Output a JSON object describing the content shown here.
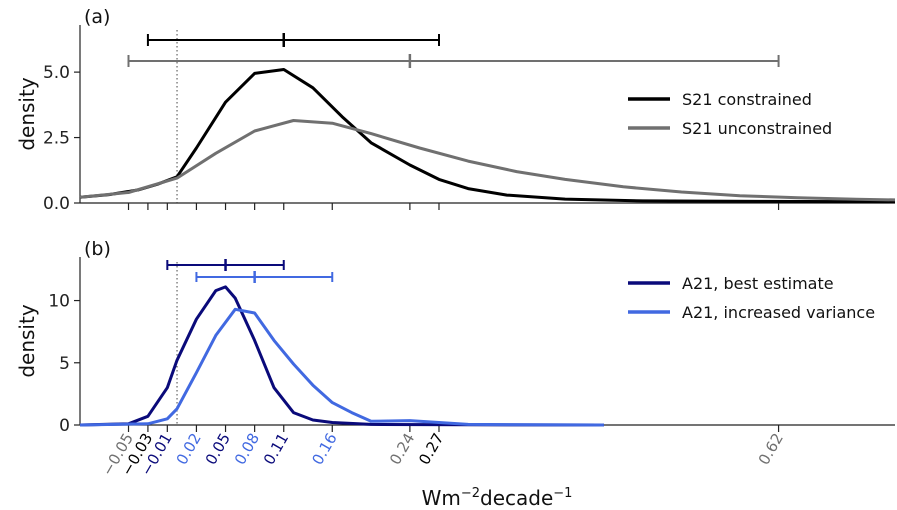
{
  "chart_data": {
    "type": "line",
    "shared_x": {
      "xlabel_base": "Wm",
      "xlabel_exp1": "−2",
      "xlabel_mid": "decade",
      "xlabel_exp2": "−1",
      "xlim": [
        -0.1,
        0.74
      ],
      "tick_labels": [
        {
          "value": -0.05,
          "text": "−0.05",
          "color": "#707070"
        },
        {
          "value": -0.03,
          "text": "−0.03",
          "color": "#000000"
        },
        {
          "value": -0.01,
          "text": "−0.01",
          "color": "#0a0a7a"
        },
        {
          "value": 0.02,
          "text": "0.02",
          "color": "#4169e1"
        },
        {
          "value": 0.05,
          "text": "0.05",
          "color": "#0a0a7a"
        },
        {
          "value": 0.08,
          "text": "0.08",
          "color": "#4169e1"
        },
        {
          "value": 0.11,
          "text": "0.11",
          "color": "#0a0a7a"
        },
        {
          "value": 0.16,
          "text": "0.16",
          "color": "#4169e1"
        },
        {
          "value": 0.24,
          "text": "0.24",
          "color": "#707070"
        },
        {
          "value": 0.27,
          "text": "0.27",
          "color": "#000000"
        },
        {
          "value": 0.62,
          "text": "0.62",
          "color": "#707070"
        }
      ],
      "reference_line_x": 0.0
    },
    "panels": [
      {
        "panel_label": "(a)",
        "ylabel": "density",
        "ylim": [
          0,
          6.8
        ],
        "yticks": [
          0.0,
          2.5,
          5.0
        ],
        "ytick_labels": [
          "0.0",
          "2.5",
          "5.0"
        ],
        "series": [
          {
            "name": "S21 constrained",
            "color": "#000000",
            "x": [
              -0.1,
              -0.07,
              -0.04,
              -0.02,
              0.0,
              0.02,
              0.05,
              0.08,
              0.11,
              0.14,
              0.17,
              0.2,
              0.24,
              0.27,
              0.3,
              0.34,
              0.4,
              0.48,
              0.6,
              0.74
            ],
            "y": [
              0.22,
              0.32,
              0.5,
              0.72,
              1.0,
              2.1,
              3.85,
              4.95,
              5.1,
              4.4,
              3.3,
              2.3,
              1.45,
              0.9,
              0.55,
              0.3,
              0.15,
              0.08,
              0.06,
              0.05
            ]
          },
          {
            "name": "S21 unconstrained",
            "color": "#707070",
            "x": [
              -0.1,
              -0.05,
              0.0,
              0.04,
              0.08,
              0.12,
              0.16,
              0.2,
              0.25,
              0.3,
              0.35,
              0.4,
              0.46,
              0.52,
              0.58,
              0.64,
              0.7,
              0.74
            ],
            "y": [
              0.22,
              0.4,
              0.95,
              1.9,
              2.75,
              3.15,
              3.05,
              2.65,
              2.1,
              1.6,
              1.2,
              0.9,
              0.62,
              0.42,
              0.28,
              0.2,
              0.14,
              0.12
            ]
          }
        ],
        "intervals": [
          {
            "series": "S21 constrained",
            "low": -0.03,
            "median": 0.11,
            "high": 0.27,
            "color": "#000000"
          },
          {
            "series": "S21 unconstrained",
            "low": -0.05,
            "median": 0.24,
            "high": 0.62,
            "color": "#707070"
          }
        ],
        "legend_position": "right"
      },
      {
        "panel_label": "(b)",
        "ylabel": "density",
        "ylim": [
          0,
          13.5
        ],
        "yticks": [
          0,
          5,
          10
        ],
        "ytick_labels": [
          "0",
          "5",
          "10"
        ],
        "series": [
          {
            "name": "A21, best estimate",
            "color": "#0a0a7a",
            "x": [
              -0.1,
              -0.05,
              -0.03,
              -0.01,
              0.0,
              0.02,
              0.04,
              0.05,
              0.06,
              0.08,
              0.1,
              0.12,
              0.14,
              0.16,
              0.2,
              0.3,
              0.44
            ],
            "y": [
              0.0,
              0.1,
              0.7,
              3.0,
              5.2,
              8.5,
              10.8,
              11.1,
              10.2,
              6.8,
              3.0,
              1.0,
              0.4,
              0.2,
              0.05,
              0.02,
              0.0
            ]
          },
          {
            "name": "A21, increased variance",
            "color": "#4169e1",
            "x": [
              -0.1,
              -0.03,
              -0.01,
              0.0,
              0.02,
              0.04,
              0.06,
              0.08,
              0.1,
              0.12,
              0.14,
              0.16,
              0.18,
              0.2,
              0.24,
              0.3,
              0.44
            ],
            "y": [
              0.0,
              0.1,
              0.5,
              1.3,
              4.2,
              7.2,
              9.3,
              9.0,
              6.8,
              4.9,
              3.2,
              1.8,
              1.0,
              0.3,
              0.35,
              0.05,
              0.0
            ]
          }
        ],
        "intervals": [
          {
            "series": "A21, best estimate",
            "low": -0.01,
            "median": 0.05,
            "high": 0.11,
            "color": "#0a0a7a"
          },
          {
            "series": "A21, increased variance",
            "low": 0.02,
            "median": 0.08,
            "high": 0.16,
            "color": "#4169e1"
          }
        ],
        "legend_position": "right"
      }
    ]
  }
}
